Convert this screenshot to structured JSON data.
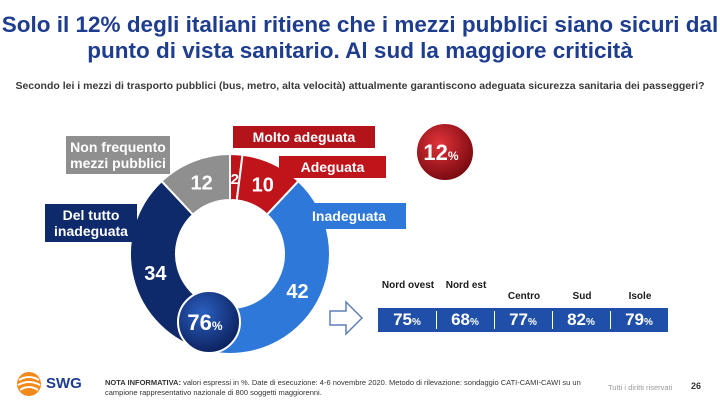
{
  "title": "Solo il 12% degli italiani ritiene che i mezzi pubblici siano sicuri dal punto di vista sanitario. Al sud la maggiore criticità",
  "question": "Secondo lei i mezzi di trasporto pubblici (bus, metro, alta velocità) attualmente garantiscono adeguata sicurezza sanitaria dei passeggeri?",
  "chart_data": {
    "type": "pie",
    "categories": [
      "Molto adeguata",
      "Adeguata",
      "Inadeguata",
      "Del tutto inadeguata",
      "Non frequento mezzi pubblici"
    ],
    "values": [
      2,
      10,
      42,
      34,
      12
    ],
    "colors": [
      "#c0141b",
      "#c0141b",
      "#2d78d8",
      "#0f2a6b",
      "#8f8f8f"
    ],
    "value_labels": [
      "2",
      "10",
      "42",
      "34",
      "12"
    ]
  },
  "totals": {
    "positive": "12",
    "negative": "76",
    "unit": "%"
  },
  "regions": {
    "columns": [
      "Nord ovest",
      "Nord est",
      "Centro",
      "Sud",
      "Isole"
    ],
    "values": [
      "75",
      "68",
      "77",
      "82",
      "79"
    ],
    "unit": "%"
  },
  "footer": {
    "note_label": "NOTA INFORMATIVA:",
    "note_text": "valori espressi in %. Date di esecuzione: 4-6 novembre 2020. Metodo di rilevazione: sondaggio CATI-CAMI-CAWI su un campione rappresentativo nazionale di 800 soggetti maggiorenni.",
    "logo": "SWG",
    "rights": "Tutti i diritti riservati",
    "page": "26"
  },
  "icons": [
    "swg-logo-icon",
    "arrow-right-icon"
  ]
}
